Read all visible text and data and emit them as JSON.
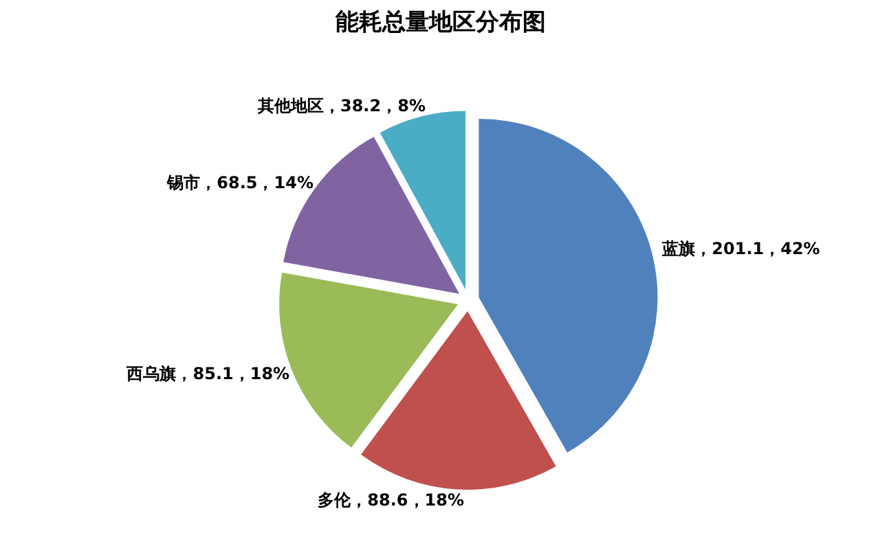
{
  "chart_data": {
    "type": "pie",
    "title": "能耗总量地区分布图",
    "categories": [
      "蓝旗",
      "多伦",
      "西乌旗",
      "锡市",
      "其他地区"
    ],
    "values": [
      201.1,
      88.6,
      85.1,
      68.5,
      38.2
    ],
    "colors": [
      "#4f81bd",
      "#c0504d",
      "#9bbb59",
      "#8064a2",
      "#4bacc6"
    ],
    "value_labels": [
      "，201.1，42%",
      "，88.6，18%",
      "，85.1，18%",
      "，68.5，14%",
      "，38.2，8%"
    ]
  }
}
